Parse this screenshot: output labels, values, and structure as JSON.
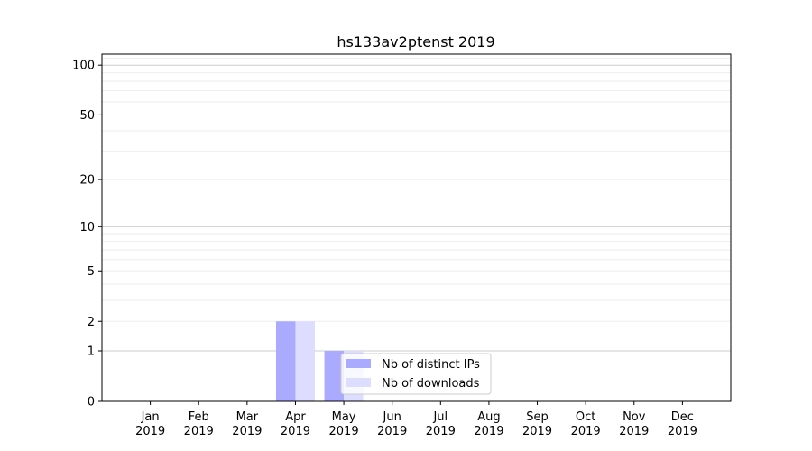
{
  "chart_data": {
    "type": "bar",
    "title": "hs133av2ptenst 2019",
    "xlabel": "",
    "ylabel": "",
    "y_scale": "symlog",
    "ylim": [
      0,
      116
    ],
    "y_ticks": [
      0,
      1,
      2,
      5,
      10,
      20,
      50,
      100
    ],
    "y_tick_labels": [
      "0",
      "1",
      "2",
      "5",
      "10",
      "20",
      "50",
      "100"
    ],
    "grid": true,
    "legend_position": "bottom-center",
    "categories": [
      [
        "Jan",
        "2019"
      ],
      [
        "Feb",
        "2019"
      ],
      [
        "Mar",
        "2019"
      ],
      [
        "Apr",
        "2019"
      ],
      [
        "May",
        "2019"
      ],
      [
        "Jun",
        "2019"
      ],
      [
        "Jul",
        "2019"
      ],
      [
        "Aug",
        "2019"
      ],
      [
        "Sep",
        "2019"
      ],
      [
        "Oct",
        "2019"
      ],
      [
        "Nov",
        "2019"
      ],
      [
        "Dec",
        "2019"
      ]
    ],
    "series": [
      {
        "name": "Nb of distinct IPs",
        "color": "#aaaaff",
        "values": [
          0,
          0,
          0,
          2,
          1,
          0,
          0,
          0,
          0,
          0,
          0,
          0
        ]
      },
      {
        "name": "Nb of downloads",
        "color": "#ddddff",
        "values": [
          0,
          0,
          0,
          2,
          1,
          0,
          0,
          0,
          0,
          0,
          0,
          0
        ]
      }
    ]
  }
}
